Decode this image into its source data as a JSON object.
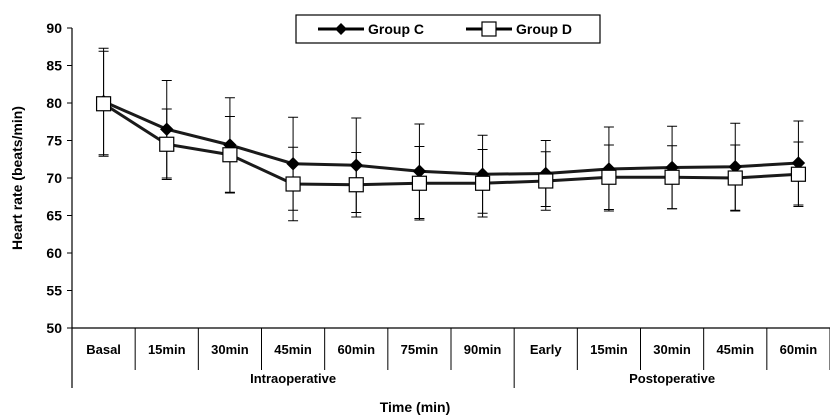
{
  "chart_data": {
    "type": "line",
    "ylabel": "Heart rate (beats/min)",
    "xlabel": "Time (min)",
    "ylim": [
      50,
      90
    ],
    "y_ticks": [
      50,
      55,
      60,
      65,
      70,
      75,
      80,
      85,
      90
    ],
    "categories": [
      "Basal",
      "15min",
      "30min",
      "45min",
      "60min",
      "75min",
      "90min",
      "Early",
      "15min",
      "30min",
      "45min",
      "60min"
    ],
    "category_groups": [
      {
        "label": "Intraoperative",
        "start": 0,
        "end": 6
      },
      {
        "label": "Postoperative",
        "start": 7,
        "end": 11
      }
    ],
    "grid": false,
    "legend_position": "top-center",
    "series": [
      {
        "name": "Group C",
        "marker": "diamond-filled",
        "color": "#1a1a1a",
        "values": [
          80.2,
          76.5,
          74.4,
          71.9,
          71.7,
          70.9,
          70.5,
          70.6,
          71.2,
          71.4,
          71.5,
          72.0
        ],
        "error": [
          7.1,
          6.5,
          6.3,
          6.2,
          6.3,
          6.3,
          5.2,
          4.4,
          5.6,
          5.5,
          5.8,
          5.6
        ]
      },
      {
        "name": "Group D",
        "marker": "square-open",
        "color": "#1a1a1a",
        "values": [
          79.9,
          74.5,
          73.1,
          69.2,
          69.1,
          69.3,
          69.3,
          69.6,
          70.1,
          70.1,
          70.0,
          70.5
        ],
        "error": [
          7.0,
          4.7,
          5.1,
          4.9,
          4.3,
          4.9,
          4.5,
          3.9,
          4.3,
          4.2,
          4.4,
          4.3
        ]
      }
    ]
  }
}
